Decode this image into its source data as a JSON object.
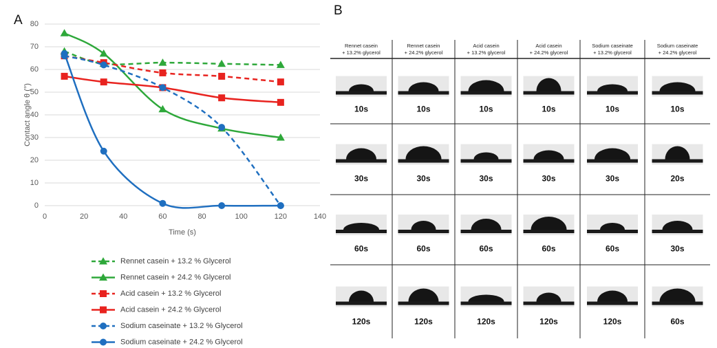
{
  "panel_labels": [
    "A",
    "B"
  ],
  "chart_data": {
    "type": "line",
    "xlabel": "Time (s)",
    "ylabel": "Contact angle θ (°)",
    "x": [
      10,
      30,
      60,
      90,
      120
    ],
    "xlim": [
      0,
      140
    ],
    "xticks": [
      0,
      20,
      40,
      60,
      80,
      100,
      120,
      140
    ],
    "ylim": [
      0,
      80
    ],
    "yticks": [
      0,
      10,
      20,
      30,
      40,
      50,
      60,
      70,
      80
    ],
    "grid": true,
    "series": [
      {
        "name": "Rennet casein + 13.2 % Glycerol",
        "color": "#2ea83a",
        "dashed": true,
        "marker": "triangle",
        "values": [
          68,
          62.5,
          63,
          62.5,
          62
        ]
      },
      {
        "name": "Rennet casein + 24.2 % Glycerol",
        "color": "#2ea83a",
        "dashed": false,
        "marker": "triangle",
        "values": [
          76,
          67,
          42.5,
          34,
          30
        ]
      },
      {
        "name": "Acid casein + 13.2 % Glycerol",
        "color": "#e8231f",
        "dashed": true,
        "marker": "square",
        "values": [
          66,
          63,
          58.5,
          57,
          54.5
        ]
      },
      {
        "name": "Acid casein + 24.2 % Glycerol",
        "color": "#e8231f",
        "dashed": false,
        "marker": "square",
        "values": [
          57,
          54.5,
          52,
          47.5,
          45.5
        ]
      },
      {
        "name": "Sodium caseinate + 13.2 % Glycerol",
        "color": "#1f6fc0",
        "dashed": true,
        "marker": "circle",
        "values": [
          66,
          62,
          52,
          34.5,
          0
        ]
      },
      {
        "name": "Sodium caseinate + 24.2 % Glycerol",
        "color": "#1f6fc0",
        "dashed": false,
        "marker": "circle",
        "values": [
          67,
          24,
          1,
          0,
          0
        ]
      }
    ]
  },
  "image_grid": {
    "columns": [
      {
        "header": [
          "Rennet casein",
          "+ 13.2% glycerol"
        ],
        "times": [
          "10s",
          "30s",
          "60s",
          "120s"
        ]
      },
      {
        "header": [
          "Rennet casein",
          "+ 24.2% glycerol"
        ],
        "times": [
          "10s",
          "30s",
          "60s",
          "120s"
        ]
      },
      {
        "header": [
          "Acid casein",
          "+ 13.2% glycerol"
        ],
        "times": [
          "10s",
          "30s",
          "60s",
          "120s"
        ]
      },
      {
        "header": [
          "Acid casein",
          "+ 24.2% glycerol"
        ],
        "times": [
          "10s",
          "30s",
          "60s",
          "120s"
        ]
      },
      {
        "header": [
          "Sodium caseinate",
          "+ 13.2% glycerol"
        ],
        "times": [
          "10s",
          "30s",
          "60s",
          "120s"
        ]
      },
      {
        "header": [
          "Sodium caseinate",
          "+ 24.2% glycerol"
        ],
        "times": [
          "10s",
          "20s",
          "30s",
          "60s"
        ]
      }
    ]
  }
}
